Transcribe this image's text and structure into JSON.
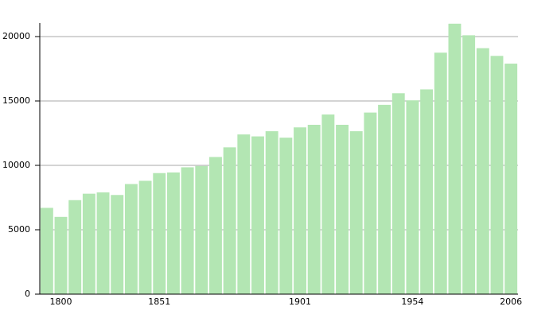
{
  "chart_data": {
    "type": "bar",
    "categories": [
      null,
      "1800",
      null,
      null,
      null,
      null,
      null,
      null,
      "1851",
      null,
      null,
      null,
      null,
      null,
      null,
      null,
      null,
      null,
      "1901",
      null,
      null,
      null,
      null,
      null,
      null,
      null,
      "1954",
      null,
      null,
      null,
      null,
      null,
      null,
      "2006"
    ],
    "values": [
      6700,
      6000,
      7300,
      7800,
      7900,
      7700,
      8550,
      8800,
      9400,
      9450,
      9850,
      9950,
      10650,
      11400,
      12400,
      12250,
      12650,
      12150,
      12950,
      13150,
      13950,
      13150,
      12650,
      14100,
      14700,
      15600,
      15050,
      15900,
      18750,
      21000,
      20100,
      19100,
      18500,
      17900
    ],
    "color": "#b3e6b3",
    "ylim": [
      0,
      21050
    ],
    "yticks": [
      0,
      5000,
      10000,
      15000,
      20000
    ],
    "grid": true
  }
}
